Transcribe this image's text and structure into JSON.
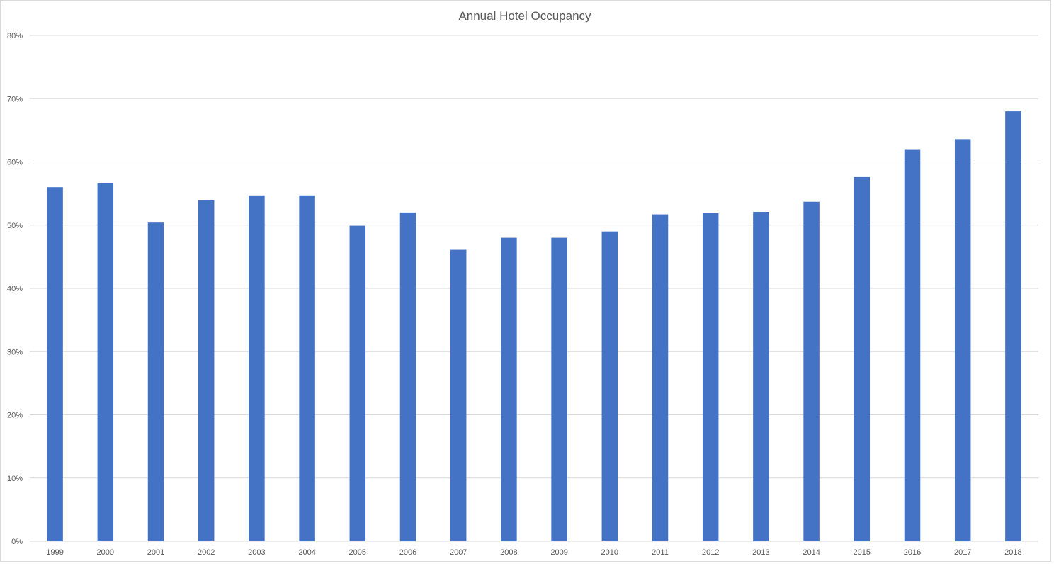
{
  "chart_data": {
    "type": "bar",
    "title": "Annual Hotel Occupancy",
    "xlabel": "",
    "ylabel": "",
    "categories": [
      "1999",
      "2000",
      "2001",
      "2002",
      "2003",
      "2004",
      "2005",
      "2006",
      "2007",
      "2008",
      "2009",
      "2010",
      "2011",
      "2012",
      "2013",
      "2014",
      "2015",
      "2016",
      "2017",
      "2018"
    ],
    "values": [
      56.0,
      56.6,
      50.4,
      53.9,
      54.7,
      54.7,
      49.9,
      52.0,
      46.1,
      48.0,
      48.0,
      49.0,
      51.7,
      51.9,
      52.1,
      53.7,
      57.6,
      61.9,
      63.6,
      68.0
    ],
    "ylim": [
      0,
      80
    ],
    "yticks": [
      0,
      10,
      20,
      30,
      40,
      50,
      60,
      70,
      80
    ],
    "ytick_labels": [
      "0%",
      "10%",
      "20%",
      "30%",
      "40%",
      "50%",
      "60%",
      "70%",
      "80%"
    ],
    "value_format": "percent",
    "grid": true,
    "legend": "none",
    "bar_color": "#4472c4",
    "grid_color": "#d9d9d9"
  }
}
